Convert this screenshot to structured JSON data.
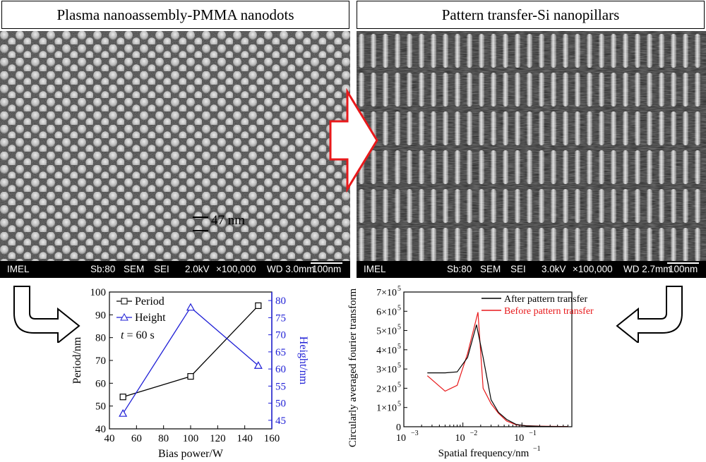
{
  "left_panel": {
    "title": "Plasma nanoassembly-PMMA nanodots",
    "scale_annotation": "47 nm",
    "databar": {
      "lab": "IMEL",
      "sb": "Sb:80",
      "mode": "SEM",
      "detector": "SEI",
      "voltage": "2.0kV",
      "mag": "×100,000",
      "wd": "WD 3.0mm",
      "scale": "100nm"
    }
  },
  "right_panel": {
    "title": "Pattern transfer-Si nanopillars",
    "databar": {
      "lab": "IMEL",
      "sb": "Sb:80",
      "mode": "SEM",
      "detector": "SEI",
      "voltage": "3.0kV",
      "mag": "×100,000",
      "wd": "WD 2.7mm",
      "scale": "100nm"
    }
  },
  "colors": {
    "arrow_red": "#e8191b",
    "period": "#000000",
    "height": "#1f1fd6",
    "after": "#000000",
    "before": "#e8191b"
  },
  "chart_data": [
    {
      "type": "line",
      "xlabel": "Bias power/W",
      "ylabel": "Period/nm",
      "y2label": "Height/nm",
      "xlim": [
        40,
        160
      ],
      "ylim": [
        40,
        100
      ],
      "y2lim": [
        42.5,
        82.5
      ],
      "xticks": [
        "40",
        "60",
        "80",
        "100",
        "120",
        "140",
        "160"
      ],
      "yticks": [
        "40",
        "50",
        "60",
        "70",
        "80",
        "90",
        "100"
      ],
      "y2ticks": [
        "45",
        "50",
        "55",
        "60",
        "65",
        "70",
        "75",
        "80"
      ],
      "annotation_t": "t",
      "annotation_rest": " = 60 s",
      "series": [
        {
          "name": "Period",
          "axis": "left",
          "marker": "square",
          "x": [
            50,
            100,
            150
          ],
          "values": [
            54,
            63,
            94
          ]
        },
        {
          "name": "Height",
          "axis": "right",
          "marker": "triangle",
          "x": [
            50,
            100,
            150
          ],
          "values": [
            47,
            78,
            61
          ]
        }
      ]
    },
    {
      "type": "line",
      "xlabel": "Spatial frequency/nm",
      "xlabel_sup": "−1",
      "ylabel": "Circularly averaged fourier transform",
      "xscale": "log",
      "xlim": [
        0.001,
        0.7
      ],
      "ylim": [
        0,
        700000
      ],
      "xtick_exps": [
        "−3",
        "−2",
        "−1"
      ],
      "yticks": [
        {
          "m": "0",
          "e": ""
        },
        {
          "m": "1×10",
          "e": "5"
        },
        {
          "m": "2×10",
          "e": "5"
        },
        {
          "m": "3×10",
          "e": "5"
        },
        {
          "m": "4×10",
          "e": "5"
        },
        {
          "m": "5×10",
          "e": "5"
        },
        {
          "m": "6×10",
          "e": "5"
        },
        {
          "m": "7×10",
          "e": "5"
        }
      ],
      "series": [
        {
          "name": "After pattern transfer",
          "x": [
            0.0025,
            0.005,
            0.008,
            0.012,
            0.017,
            0.022,
            0.03,
            0.04,
            0.055,
            0.08,
            0.12,
            0.2,
            0.35,
            0.6
          ],
          "values": [
            280000,
            280000,
            285000,
            360000,
            530000,
            360000,
            140000,
            75000,
            38000,
            12000,
            4000,
            2000,
            1000,
            500
          ]
        },
        {
          "name": "Before pattern transfer",
          "x": [
            0.0025,
            0.005,
            0.008,
            0.012,
            0.018,
            0.022,
            0.03,
            0.04,
            0.055,
            0.08,
            0.12,
            0.2,
            0.35,
            0.6
          ],
          "values": [
            265000,
            185000,
            215000,
            380000,
            595000,
            200000,
            120000,
            70000,
            30000,
            10000,
            5000,
            3000,
            2000,
            1000
          ]
        }
      ]
    }
  ]
}
